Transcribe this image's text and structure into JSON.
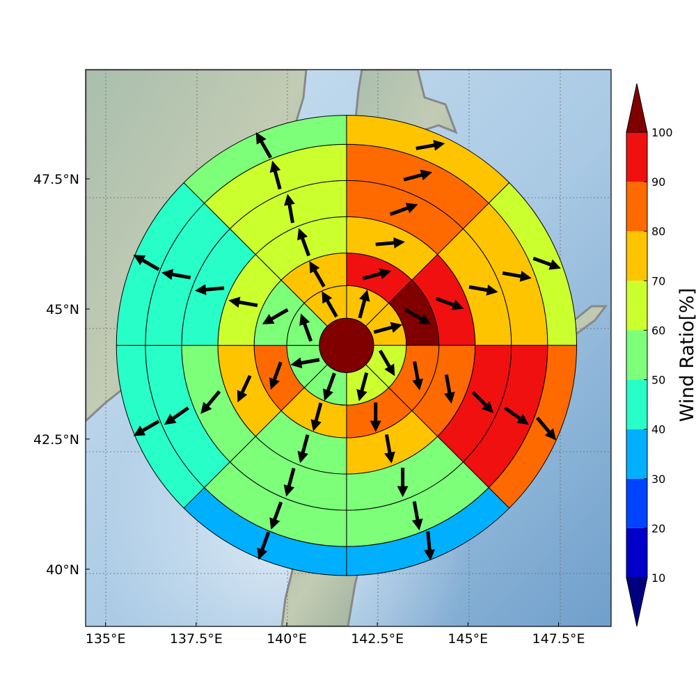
{
  "chart_data": {
    "type": "polar-sector-map",
    "x_axis": {
      "ticks": [
        135,
        137.5,
        140,
        142.5,
        145,
        147.5
      ],
      "tick_labels": [
        "135°E",
        "137.5°E",
        "140°E",
        "142.5°E",
        "145°E",
        "147.5°E"
      ],
      "range": [
        134.45,
        148.95
      ]
    },
    "y_axis": {
      "ticks": [
        40,
        42.5,
        45,
        47.5
      ],
      "tick_labels": [
        "40°N",
        "42.5°N",
        "45°N",
        "47.5°N"
      ],
      "range": [
        38.9,
        49.6
      ]
    },
    "grid": true,
    "center": {
      "lon": 141.65,
      "lat": 44.3
    },
    "ring_radii_deg": [
      0.75,
      1.65,
      2.55,
      3.55,
      4.55,
      5.55,
      6.35
    ],
    "sectors_per_ring": 8,
    "sector_order": "clockwise from north, first sector spans N to NE",
    "center_value": 100,
    "rings": [
      {
        "values": [
          75,
          75,
          62,
          62,
          57,
          57,
          57,
          75
        ],
        "wind_dir_deg": [
          15,
          75,
          150,
          195,
          200,
          260,
          340,
          330
        ]
      },
      {
        "values": [
          95,
          100,
          85,
          85,
          75,
          85,
          57,
          75
        ],
        "wind_dir_deg": [
          75,
          120,
          170,
          180,
          195,
          200,
          240,
          330
        ]
      },
      {
        "values": [
          75,
          95,
          85,
          75,
          57,
          75,
          62,
          62
        ],
        "wind_dir_deg": [
          85,
          110,
          170,
          170,
          195,
          205,
          280,
          340
        ]
      },
      {
        "values": [
          85,
          75,
          95,
          57,
          57,
          57,
          45,
          62
        ],
        "wind_dir_deg": [
          70,
          100,
          135,
          180,
          195,
          220,
          265,
          350
        ]
      },
      {
        "values": [
          85,
          75,
          95,
          57,
          57,
          45,
          45,
          62
        ],
        "wind_dir_deg": [
          75,
          100,
          125,
          170,
          200,
          235,
          280,
          345
        ]
      },
      {
        "values": [
          75,
          62,
          85,
          35,
          35,
          45,
          45,
          57
        ],
        "wind_dir_deg": [
          80,
          110,
          140,
          175,
          200,
          240,
          300,
          330
        ]
      }
    ],
    "colorbar": {
      "label": "Wind Ratio[%]",
      "tick_labels": [
        "10",
        "20",
        "30",
        "40",
        "50",
        "60",
        "70",
        "80",
        "90",
        "100"
      ],
      "bounds": [
        10,
        20,
        30,
        40,
        50,
        60,
        70,
        80,
        90,
        100
      ],
      "colors": [
        "#0000c8",
        "#0044ff",
        "#00b0ff",
        "#28ffc8",
        "#7dff7a",
        "#ccff2e",
        "#ffc400",
        "#ff6a00",
        "#f01010"
      ],
      "under_color": "#00007f",
      "over_color": "#800000",
      "extend": "both"
    }
  }
}
